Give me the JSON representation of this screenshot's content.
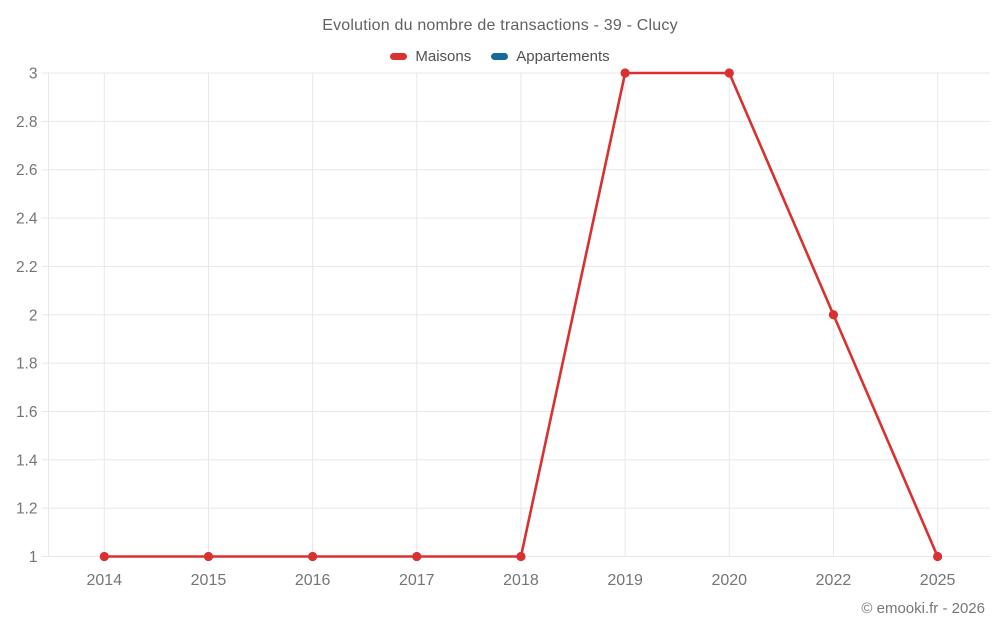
{
  "title": "Evolution du nombre de transactions - 39 - Clucy",
  "legend": [
    {
      "label": "Maisons",
      "color": "#d93030"
    },
    {
      "label": "Appartements",
      "color": "#166a9b"
    }
  ],
  "copyright": "© emooki.fr - 2026",
  "chart_data": {
    "type": "line",
    "title": "Evolution du nombre de transactions - 39 - Clucy",
    "categories": [
      "2014",
      "2015",
      "2016",
      "2017",
      "2018",
      "2019",
      "2020",
      "2022",
      "2025"
    ],
    "series": [
      {
        "name": "Maisons",
        "color": "#d93030",
        "values": [
          1,
          1,
          1,
          1,
          1,
          3,
          3,
          2,
          1
        ]
      },
      {
        "name": "Appartements",
        "color": "#166a9b",
        "values": []
      }
    ],
    "xlabel": "",
    "ylabel": "",
    "ylim": [
      1,
      3
    ],
    "yticks": [
      1,
      1.2,
      1.4,
      1.6,
      1.8,
      2,
      2.2,
      2.4,
      2.6,
      2.8,
      3
    ],
    "grid": true,
    "legend_position": "top",
    "marker": "circle"
  }
}
